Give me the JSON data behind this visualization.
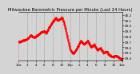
{
  "title": "Milwaukee Barometric Pressure per Minute (Last 24 Hours)",
  "bg_color": "#d4d4d4",
  "plot_bg_color": "#d4d4d4",
  "line_color": "#ff0000",
  "grid_color": "#888888",
  "ylim": [
    29.35,
    30.25
  ],
  "yticks": [
    29.4,
    29.5,
    29.6,
    29.7,
    29.8,
    29.9,
    30.0,
    30.1,
    30.2
  ],
  "num_points": 1440,
  "num_vgridlines": 12,
  "title_fontsize": 3.8,
  "tick_fontsize": 3.0,
  "marker_size": 0.8,
  "linewidth": 0.4
}
